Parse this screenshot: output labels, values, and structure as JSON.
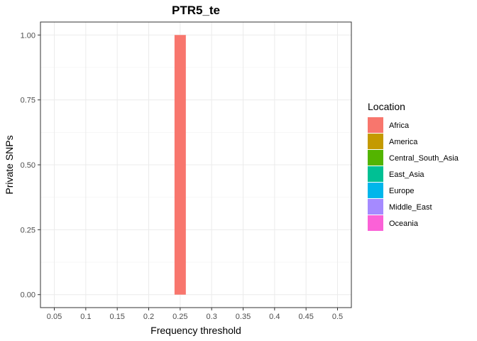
{
  "chart_data": {
    "type": "bar",
    "title": "PTR5_te",
    "xlabel": "Frequency threshold",
    "ylabel": "Private SNPs",
    "x_ticks": [
      "0.05",
      "0.1",
      "0.15",
      "0.2",
      "0.25",
      "0.3",
      "0.35",
      "0.4",
      "0.45",
      "0.5"
    ],
    "x_values": [
      0.05,
      0.1,
      0.15,
      0.2,
      0.25,
      0.3,
      0.35,
      0.4,
      0.45,
      0.5
    ],
    "y_ticks": [
      "0.00",
      "0.25",
      "0.50",
      "0.75",
      "1.00"
    ],
    "ylim": [
      0,
      1
    ],
    "grid": true,
    "legend_position": "right",
    "legend_title": "Location",
    "series": [
      {
        "name": "Africa",
        "color": "#F8766D",
        "values": [
          0,
          0,
          0,
          0,
          1,
          0,
          0,
          0,
          0,
          0
        ]
      },
      {
        "name": "America",
        "color": "#C49A00",
        "values": [
          0,
          0,
          0,
          0,
          0,
          0,
          0,
          0,
          0,
          0
        ]
      },
      {
        "name": "Central_South_Asia",
        "color": "#53B400",
        "values": [
          0,
          0,
          0,
          0,
          0,
          0,
          0,
          0,
          0,
          0
        ]
      },
      {
        "name": "East_Asia",
        "color": "#00C094",
        "values": [
          0,
          0,
          0,
          0,
          0,
          0,
          0,
          0,
          0,
          0
        ]
      },
      {
        "name": "Europe",
        "color": "#00B6EB",
        "values": [
          0,
          0,
          0,
          0,
          0,
          0,
          0,
          0,
          0,
          0
        ]
      },
      {
        "name": "Middle_East",
        "color": "#A58AFF",
        "values": [
          0,
          0,
          0,
          0,
          0,
          0,
          0,
          0,
          0,
          0
        ]
      },
      {
        "name": "Oceania",
        "color": "#FB61D7",
        "values": [
          0,
          0,
          0,
          0,
          0,
          0,
          0,
          0,
          0,
          0
        ]
      }
    ]
  }
}
